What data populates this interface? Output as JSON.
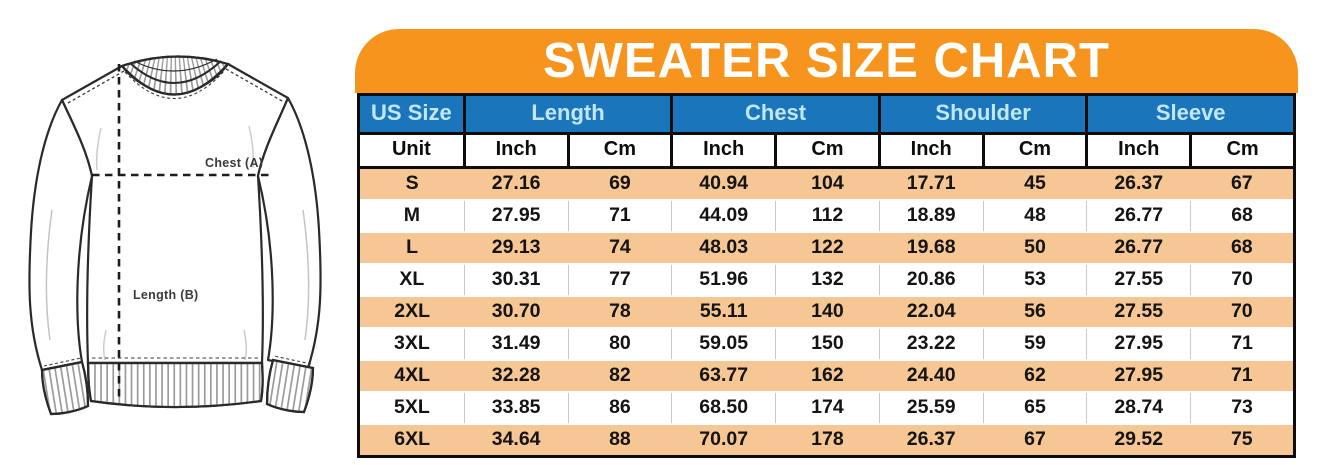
{
  "title": "SWEATER SIZE CHART",
  "diagram": {
    "chest_label": "Chest (A)",
    "length_label": "Length (B)"
  },
  "chart_data": {
    "type": "table",
    "title": "SWEATER SIZE CHART",
    "group_headers": [
      {
        "label": "US Size",
        "colspan": 1
      },
      {
        "label": "Length",
        "colspan": 2
      },
      {
        "label": "Chest",
        "colspan": 2
      },
      {
        "label": "Shoulder",
        "colspan": 2
      },
      {
        "label": "Sleeve",
        "colspan": 2
      }
    ],
    "unit_row": [
      "Unit",
      "Inch",
      "Cm",
      "Inch",
      "Cm",
      "Inch",
      "Cm",
      "Inch",
      "Cm"
    ],
    "rows": [
      {
        "size": "S",
        "values": [
          "27.16",
          "69",
          "40.94",
          "104",
          "17.71",
          "45",
          "26.37",
          "67"
        ]
      },
      {
        "size": "M",
        "values": [
          "27.95",
          "71",
          "44.09",
          "112",
          "18.89",
          "48",
          "26.77",
          "68"
        ]
      },
      {
        "size": "L",
        "values": [
          "29.13",
          "74",
          "48.03",
          "122",
          "19.68",
          "50",
          "26.77",
          "68"
        ]
      },
      {
        "size": "XL",
        "values": [
          "30.31",
          "77",
          "51.96",
          "132",
          "20.86",
          "53",
          "27.55",
          "70"
        ]
      },
      {
        "size": "2XL",
        "values": [
          "30.70",
          "78",
          "55.11",
          "140",
          "22.04",
          "56",
          "27.55",
          "70"
        ]
      },
      {
        "size": "3XL",
        "values": [
          "31.49",
          "80",
          "59.05",
          "150",
          "23.22",
          "59",
          "27.95",
          "71"
        ]
      },
      {
        "size": "4XL",
        "values": [
          "32.28",
          "82",
          "63.77",
          "162",
          "24.40",
          "62",
          "27.95",
          "71"
        ]
      },
      {
        "size": "5XL",
        "values": [
          "33.85",
          "86",
          "68.50",
          "174",
          "25.59",
          "65",
          "28.74",
          "73"
        ]
      },
      {
        "size": "6XL",
        "values": [
          "34.64",
          "88",
          "70.07",
          "178",
          "26.37",
          "67",
          "29.52",
          "75"
        ]
      }
    ]
  },
  "colors": {
    "banner_orange": "#F7941E",
    "header_blue": "#1B75BB",
    "header_text_blue": "#C2E7FA",
    "row_peach": "#F6C694",
    "border_black": "#0D0D0D",
    "grid_gray": "#C9C9C9"
  }
}
